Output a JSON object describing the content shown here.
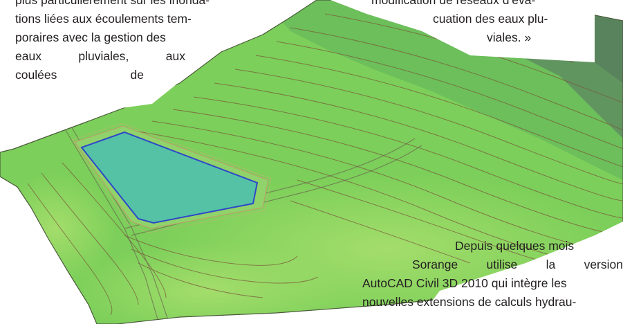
{
  "colors": {
    "terrain_base": "#7ccf5a",
    "terrain_light": "#a2dc6a",
    "terrain_upper": "#66b85a",
    "terrain_ridge": "#5e8a60",
    "basin_fill": "#55c2a6",
    "basin_outline": "#2f47c8",
    "contour_line": "#7a5a3a",
    "text": "#231f20"
  },
  "figure": {
    "icon": "terrain-3d-model-icon",
    "content": "3D terrain surface model with retention basin (AutoCAD Civil 3D render)"
  },
  "left_column": {
    "line1": "plus particulièrement sur les inonda-",
    "line2": "tions liées aux écoulements tem-",
    "line3": "poraires avec la gestion des",
    "line4_words": [
      "eaux",
      "pluviales,",
      "aux"
    ],
    "line5_words": [
      "coulées",
      "de"
    ]
  },
  "right_column_top": {
    "line1": "modification de réseaux d’éva-",
    "line2": "cuation des eaux plu-",
    "line3": "viales. »"
  },
  "bottom_paragraph": {
    "line1": "Depuis quelques mois",
    "line2_words": [
      "Sorange",
      "utilise",
      "la",
      "version"
    ],
    "line3": "AutoCAD Civil 3D 2010 qui intègre les",
    "line4": "nouvelles extensions de calculs hydrau-"
  }
}
